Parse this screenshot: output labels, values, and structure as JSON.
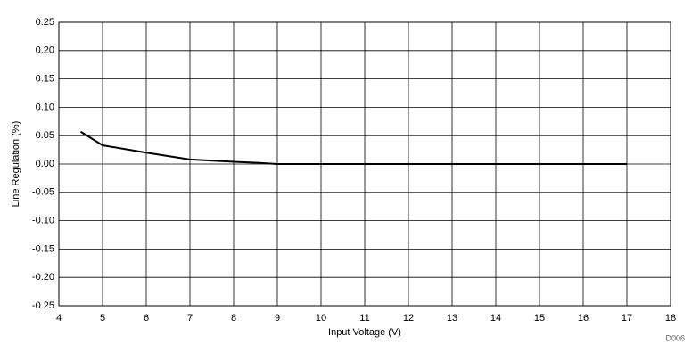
{
  "chart_data": {
    "type": "line",
    "x_label": "Input Voltage (V)",
    "y_label": "Line Regulation (%)",
    "annotation": "D006",
    "x": [
      4.5,
      5,
      6,
      7,
      8,
      8.6,
      9,
      10,
      11,
      12,
      13,
      14,
      15,
      16,
      17
    ],
    "series": [
      {
        "color": "#000000",
        "values": [
          0.057,
          0.033,
          0.02,
          0.008,
          0.004,
          0.002,
          0,
          0,
          0,
          0,
          0,
          0,
          0,
          0,
          0
        ]
      }
    ],
    "xlim": [
      4,
      18
    ],
    "xticks": [
      4,
      5,
      6,
      7,
      8,
      9,
      10,
      11,
      12,
      13,
      14,
      15,
      16,
      17,
      18
    ],
    "ylim": [
      -0.25,
      0.25
    ],
    "yticks": [
      0.25,
      {
        "value": 0.2,
        "label": "0.20"
      },
      0.15,
      {
        "value": 0.1,
        "label": "0.10"
      },
      0.05,
      {
        "value": 0,
        "label": "0.00"
      },
      -0.05,
      {
        "value": -0.1,
        "label": "-0.10"
      },
      -0.15,
      {
        "value": -0.2,
        "label": "-0.20"
      },
      -0.25
    ],
    "grid": true
  }
}
